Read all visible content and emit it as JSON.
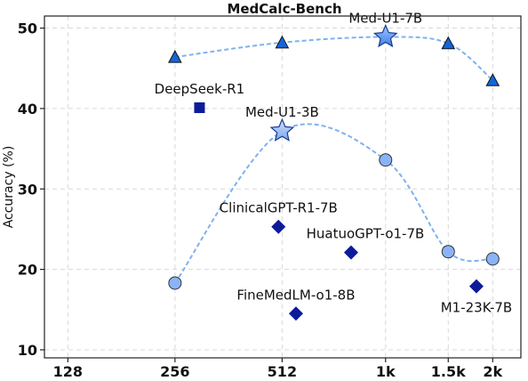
{
  "chart_data": {
    "type": "scatter",
    "title": "MedCalc-Bench",
    "xlabel": "",
    "ylabel": "Accuracy (%)",
    "xscale": "log",
    "x_ticks": [
      128,
      256,
      512,
      1000,
      1500,
      2000
    ],
    "x_tick_labels": [
      "128",
      "256",
      "512",
      "1k",
      "1.5k",
      "2k"
    ],
    "y_ticks": [
      10,
      20,
      30,
      40,
      50
    ],
    "y_tick_labels": [
      "10",
      "20",
      "30",
      "40",
      "50"
    ],
    "xlim": [
      110,
      2400
    ],
    "ylim": [
      9,
      51.5
    ],
    "grid": true,
    "series": [
      {
        "name": "Med-U1-7B",
        "marker": "triangle",
        "color": "#1565d8",
        "curve": true,
        "x": [
          256,
          512,
          1000,
          1500,
          2000
        ],
        "y": [
          46.4,
          48.2,
          48.9,
          48.1,
          43.5
        ],
        "highlight_x": 1000
      },
      {
        "name": "Med-U1-3B",
        "marker": "circle",
        "color": "#8ab4f8",
        "curve": true,
        "x": [
          256,
          512,
          1000,
          1500,
          2000
        ],
        "y": [
          18.3,
          37.2,
          33.6,
          22.2,
          21.3
        ],
        "highlight_x": 512
      }
    ],
    "baselines": [
      {
        "name": "DeepSeek-R1",
        "marker": "square",
        "color": "#0d1b9a",
        "x": 300,
        "y": 40.1
      },
      {
        "name": "ClinicalGPT-R1-7B",
        "marker": "diamond",
        "color": "#0d1b9a",
        "x": 500,
        "y": 25.3
      },
      {
        "name": "HuatuoGPT-o1-7B",
        "marker": "diamond",
        "color": "#0d1b9a",
        "x": 800,
        "y": 22.1
      },
      {
        "name": "FineMedLM-o1-8B",
        "marker": "diamond",
        "color": "#0d1b9a",
        "x": 560,
        "y": 14.5
      },
      {
        "name": "M1-23K-7B",
        "marker": "diamond",
        "color": "#0d1b9a",
        "x": 1800,
        "y": 17.9
      }
    ],
    "labels": [
      {
        "text": "Med-U1-7B",
        "x": 1000,
        "y": 48.9,
        "placement": "above"
      },
      {
        "text": "Med-U1-3B",
        "x": 512,
        "y": 37.2,
        "placement": "above"
      },
      {
        "text": "DeepSeek-R1",
        "x": 300,
        "y": 40.1,
        "placement": "above"
      },
      {
        "text": "ClinicalGPT-R1-7B",
        "x": 500,
        "y": 25.3,
        "placement": "above"
      },
      {
        "text": "HuatuoGPT-o1-7B",
        "x": 800,
        "y": 22.1,
        "placement": "above-right"
      },
      {
        "text": "FineMedLM-o1-8B",
        "x": 560,
        "y": 14.5,
        "placement": "above"
      },
      {
        "text": "M1-23K-7B",
        "x": 1800,
        "y": 17.9,
        "placement": "below"
      }
    ]
  }
}
